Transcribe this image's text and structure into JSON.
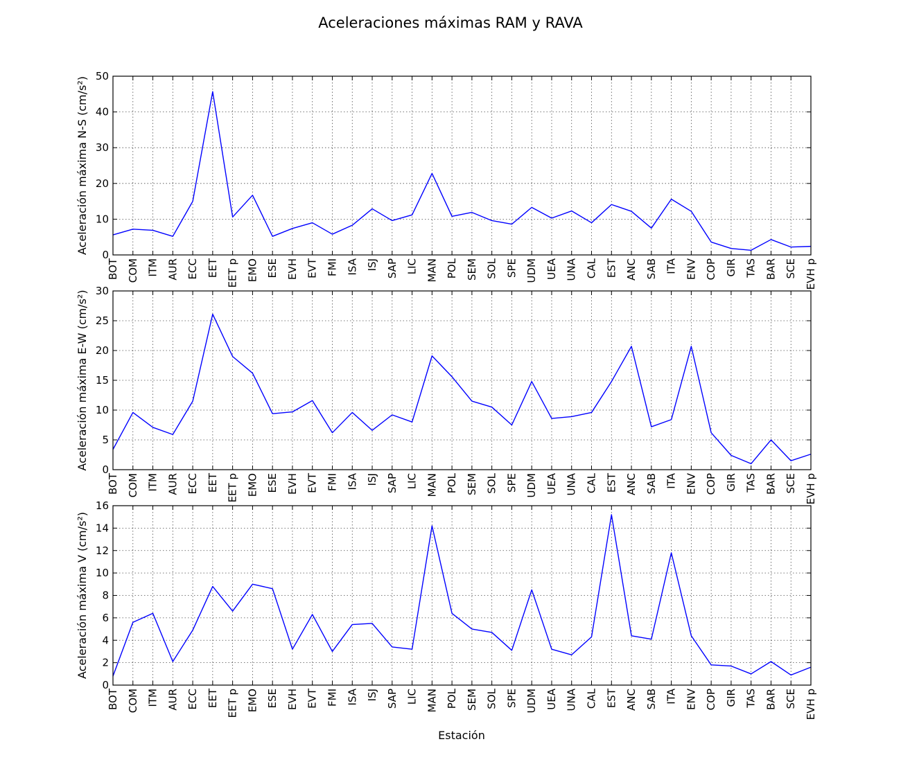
{
  "figure": {
    "title": "Aceleraciones máximas RAM y RAVA",
    "xlabel": "Estación"
  },
  "colors": {
    "line": "#0000ff"
  },
  "chart_data": [
    {
      "type": "line",
      "ylabel": "Aceleración máxima N-S (cm/s²)",
      "ylim": [
        0,
        50
      ],
      "yticks": [
        0,
        10,
        20,
        30,
        40,
        50
      ],
      "grid": true,
      "show_xlabel": false,
      "categories": [
        "BOT",
        "COM",
        "ITM",
        "AUR",
        "ECC",
        "EET",
        "EET p",
        "EMO",
        "ESE",
        "EVH",
        "EVT",
        "FMI",
        "ISA",
        "ISJ",
        "SAP",
        "LIC",
        "MAN",
        "POL",
        "SEM",
        "SOL",
        "SPE",
        "UDM",
        "UEA",
        "UNA",
        "CAL",
        "EST",
        "ANC",
        "SAB",
        "ITA",
        "ENV",
        "COP",
        "GIR",
        "TAS",
        "BAR",
        "SCE",
        "EVH p"
      ],
      "values": [
        5.6,
        7.2,
        6.9,
        5.2,
        15.0,
        45.7,
        10.6,
        16.7,
        5.2,
        7.4,
        9.0,
        5.8,
        8.3,
        12.9,
        9.6,
        11.2,
        22.8,
        10.8,
        11.9,
        9.6,
        8.6,
        13.3,
        10.3,
        12.3,
        9.0,
        14.1,
        12.2,
        7.5,
        15.6,
        12.2,
        3.6,
        1.8,
        1.3,
        4.3,
        2.2,
        2.4
      ]
    },
    {
      "type": "line",
      "ylabel": "Aceleración máxima E-W (cm/s²)",
      "ylim": [
        0,
        30
      ],
      "yticks": [
        0,
        5,
        10,
        15,
        20,
        25,
        30
      ],
      "grid": true,
      "show_xlabel": false,
      "categories": [
        "BOT",
        "COM",
        "ITM",
        "AUR",
        "ECC",
        "EET",
        "EET p",
        "EMO",
        "ESE",
        "EVH",
        "EVT",
        "FMI",
        "ISA",
        "ISJ",
        "SAP",
        "LIC",
        "MAN",
        "POL",
        "SEM",
        "SOL",
        "SPE",
        "UDM",
        "UEA",
        "UNA",
        "CAL",
        "EST",
        "ANC",
        "SAB",
        "ITA",
        "ENV",
        "COP",
        "GIR",
        "TAS",
        "BAR",
        "SCE",
        "EVH p"
      ],
      "values": [
        3.4,
        9.6,
        7.1,
        5.9,
        11.5,
        26.1,
        19.0,
        16.2,
        9.4,
        9.7,
        11.6,
        6.2,
        9.6,
        6.6,
        9.2,
        8.0,
        19.1,
        15.6,
        11.5,
        10.5,
        7.5,
        14.8,
        8.6,
        8.9,
        9.6,
        14.8,
        20.7,
        7.2,
        8.4,
        20.7,
        6.2,
        2.4,
        1.0,
        5.0,
        1.5,
        2.6
      ]
    },
    {
      "type": "line",
      "ylabel": "Aceleración máxima V (cm/s²)",
      "ylim": [
        0,
        16
      ],
      "yticks": [
        0,
        2,
        4,
        6,
        8,
        10,
        12,
        14,
        16
      ],
      "grid": true,
      "show_xlabel": true,
      "categories": [
        "BOT",
        "COM",
        "ITM",
        "AUR",
        "ECC",
        "EET",
        "EET p",
        "EMO",
        "ESE",
        "EVH",
        "EVT",
        "FMI",
        "ISA",
        "ISJ",
        "SAP",
        "LIC",
        "MAN",
        "POL",
        "SEM",
        "SOL",
        "SPE",
        "UDM",
        "UEA",
        "UNA",
        "CAL",
        "EST",
        "ANC",
        "SAB",
        "ITA",
        "ENV",
        "COP",
        "GIR",
        "TAS",
        "BAR",
        "SCE",
        "EVH p"
      ],
      "values": [
        0.8,
        5.6,
        6.4,
        2.1,
        4.9,
        8.8,
        6.6,
        9.0,
        8.6,
        3.2,
        6.3,
        3.0,
        5.4,
        5.5,
        3.4,
        3.2,
        14.2,
        6.4,
        5.0,
        4.7,
        3.1,
        8.5,
        3.2,
        2.7,
        4.3,
        15.2,
        4.4,
        4.1,
        11.8,
        4.4,
        1.8,
        1.7,
        1.0,
        2.1,
        0.9,
        1.6
      ]
    }
  ]
}
